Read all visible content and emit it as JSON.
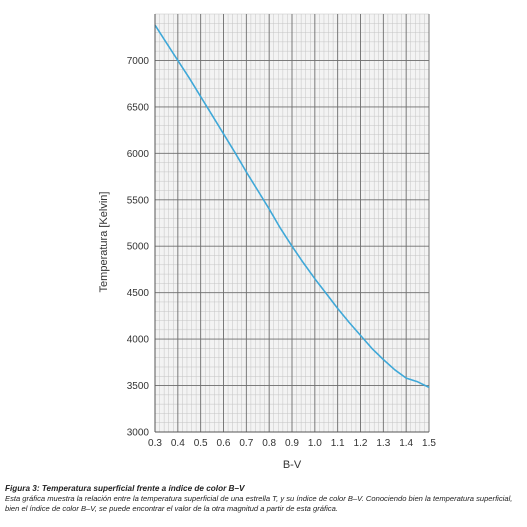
{
  "chart_data": {
    "type": "line",
    "xlabel": "B-V",
    "ylabel": "Temperatura [Kelvin]",
    "xlim": [
      0.3,
      1.5
    ],
    "ylim": [
      3000,
      7500
    ],
    "xticks": [
      "0.3",
      "0.4",
      "0.5",
      "0.6",
      "0.7",
      "0.8",
      "0.9",
      "1.0",
      "1.1",
      "1.2",
      "1.3",
      "1.4",
      "1.5"
    ],
    "yticks": [
      "3000",
      "3500",
      "4000",
      "4500",
      "5000",
      "5500",
      "6000",
      "6500",
      "7000"
    ],
    "grid": true,
    "line_color": "#3fa8d8",
    "series": [
      {
        "x": [
          0.3,
          0.35,
          0.4,
          0.45,
          0.5,
          0.55,
          0.6,
          0.65,
          0.7,
          0.75,
          0.8,
          0.85,
          0.9,
          0.95,
          1.0,
          1.05,
          1.1,
          1.15,
          1.2,
          1.25,
          1.3,
          1.35,
          1.4,
          1.45,
          1.5
        ],
        "y": [
          7380,
          7190,
          7000,
          6810,
          6610,
          6410,
          6210,
          6010,
          5800,
          5600,
          5400,
          5190,
          5000,
          4820,
          4650,
          4490,
          4330,
          4180,
          4040,
          3900,
          3780,
          3670,
          3580,
          3540,
          3480
        ]
      }
    ]
  },
  "caption": {
    "title": "Figura 3: Temperatura superficial frente a índice de color B–V",
    "body": "Esta gráfica muestra la relación entre la temperatura superficial de una estrella T, y su índice de color B–V. Conociendo bien la temperatura superficial, bien el índice de color B–V, se puede encontrar el valor de la otra magnitud a partir de esta gráfica."
  }
}
